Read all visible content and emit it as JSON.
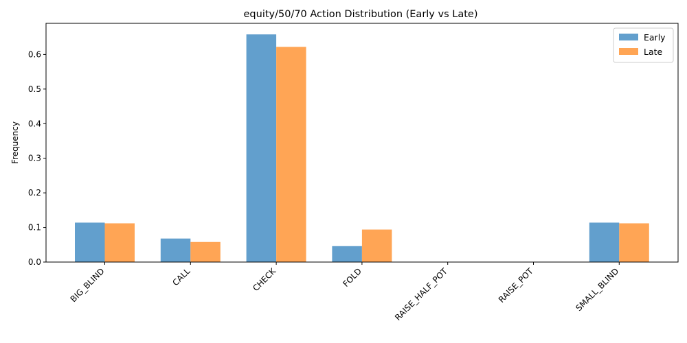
{
  "chart_data": {
    "type": "bar",
    "title": "equity/50/70 Action Distribution (Early vs Late)",
    "xlabel": "",
    "ylabel": "Frequency",
    "ylim": [
      0,
      0.69
    ],
    "yticks": [
      "0.0",
      "0.1",
      "0.2",
      "0.3",
      "0.4",
      "0.5",
      "0.6"
    ],
    "categories": [
      "BIG_BLIND",
      "CALL",
      "CHECK",
      "FOLD",
      "RAISE_HALF_POT",
      "RAISE_POT",
      "SMALL_BLIND"
    ],
    "series": [
      {
        "name": "Early",
        "color": "#629fcd",
        "values": [
          0.114,
          0.068,
          0.658,
          0.046,
          0.0,
          0.0,
          0.114
        ]
      },
      {
        "name": "Late",
        "color": "#ffa555",
        "values": [
          0.112,
          0.058,
          0.622,
          0.094,
          0.0,
          0.0,
          0.112
        ]
      }
    ],
    "legend_position": "top-right",
    "grid": false
  }
}
